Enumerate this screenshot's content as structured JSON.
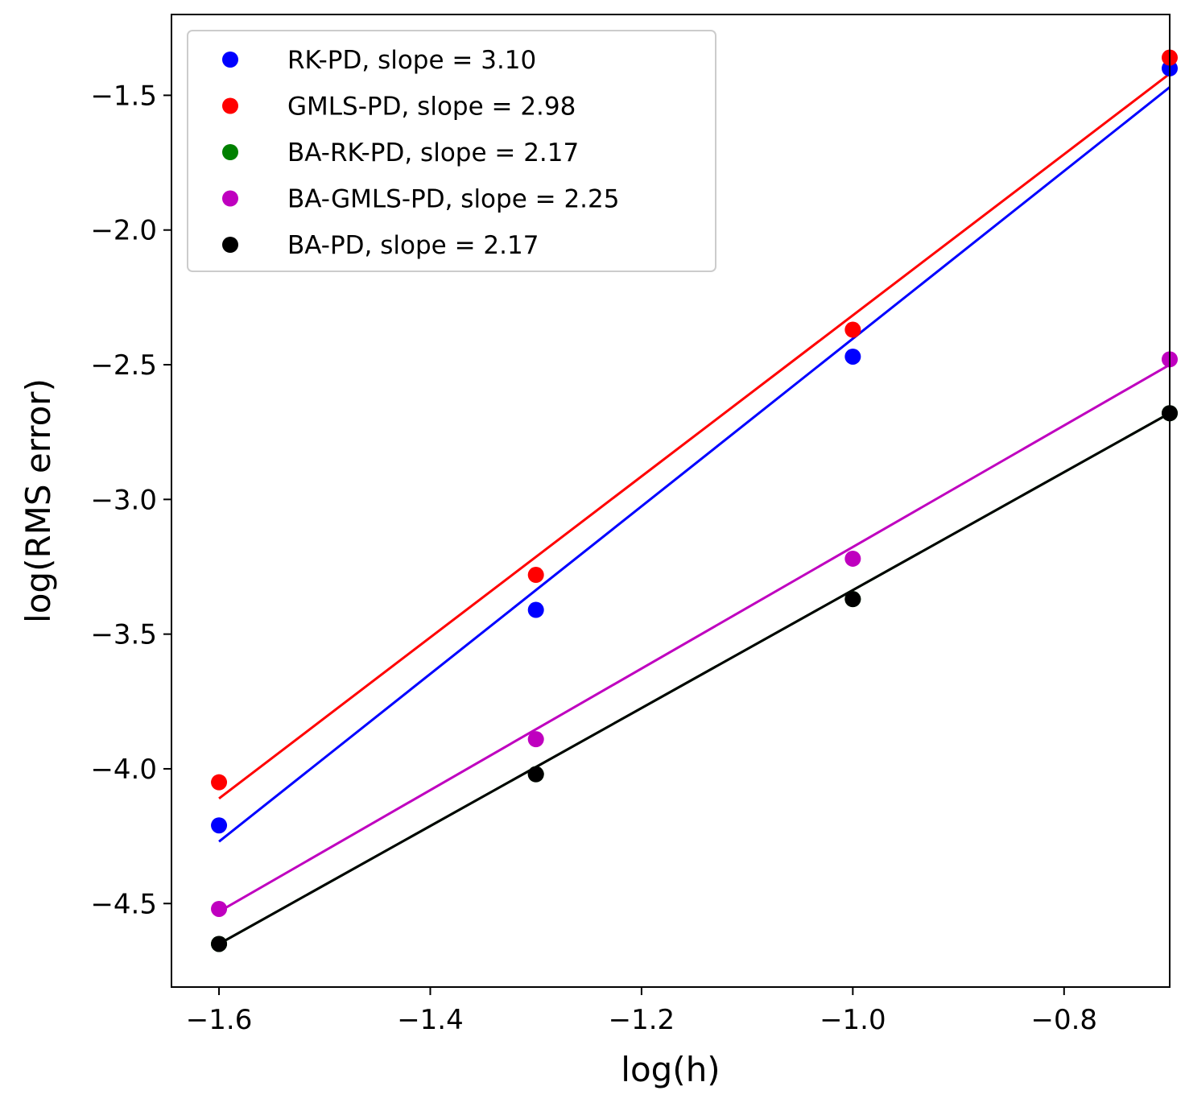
{
  "chart_data": {
    "type": "scatter",
    "title": "",
    "xlabel": "log(h)",
    "ylabel": "log(RMS error)",
    "xlim": [
      -1.645,
      -0.7
    ],
    "ylim": [
      -4.81,
      -1.2
    ],
    "xticks": [
      -1.6,
      -1.4,
      -1.2,
      -1.0,
      -0.8
    ],
    "xtick_labels": [
      "−1.6",
      "−1.4",
      "−1.2",
      "−1.0",
      "−0.8"
    ],
    "yticks": [
      -1.5,
      -2.0,
      -2.5,
      -3.0,
      -3.5,
      -4.0,
      -4.5
    ],
    "ytick_labels": [
      "−1.5",
      "−2.0",
      "−2.5",
      "−3.0",
      "−3.5",
      "−4.0",
      "−4.5"
    ],
    "legend_position": "top-left",
    "x": [
      -1.6,
      -1.3,
      -1.0,
      -0.7
    ],
    "series": [
      {
        "name": "RK-PD, slope = 3.10",
        "color": "#0000ff",
        "values": [
          -4.21,
          -3.41,
          -2.47,
          -1.4
        ],
        "fit": [
          -4.27,
          -1.47
        ]
      },
      {
        "name": "GMLS-PD, slope = 2.98",
        "color": "#ff0000",
        "values": [
          -4.05,
          -3.28,
          -2.37,
          -1.36
        ],
        "fit": [
          -4.11,
          -1.42
        ]
      },
      {
        "name": "BA-RK-PD, slope = 2.17",
        "color": "#008000",
        "values": [
          -4.65,
          -4.02,
          -3.37,
          -2.68
        ],
        "fit": [
          -4.65,
          -2.68
        ]
      },
      {
        "name": "BA-GMLS-PD, slope = 2.25",
        "color": "#bf00bf",
        "values": [
          -4.52,
          -3.89,
          -3.22,
          -2.48
        ],
        "fit": [
          -4.53,
          -2.5
        ]
      },
      {
        "name": "BA-PD, slope = 2.17",
        "color": "#000000",
        "values": [
          -4.65,
          -4.02,
          -3.37,
          -2.68
        ],
        "fit": [
          -4.65,
          -2.68
        ]
      }
    ]
  }
}
